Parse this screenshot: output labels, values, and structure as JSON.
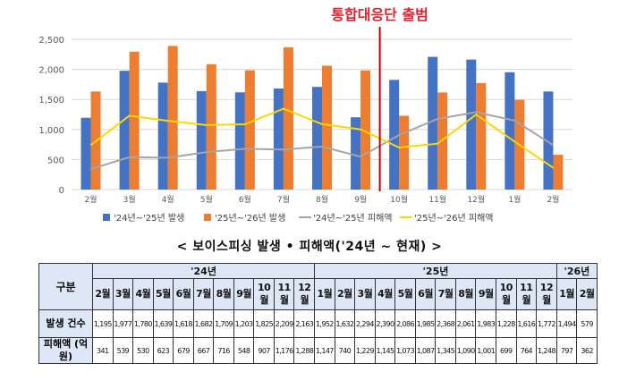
{
  "chart_data": {
    "type": "bar",
    "annotation": "통합대응단 출범",
    "categories": [
      "2월",
      "3월",
      "4월",
      "5월",
      "6월",
      "7월",
      "8월",
      "9월",
      "10월",
      "11월",
      "12월",
      "1월",
      "2월"
    ],
    "yticks": [
      "0",
      "500",
      "1,000",
      "1,500",
      "2,000",
      "2,500"
    ],
    "ylim": [
      0,
      2500
    ],
    "divider_after_index": 7,
    "series": [
      {
        "name": "'24년~'25년 발생",
        "kind": "bar",
        "color": "#4472c4",
        "values": [
          1195,
          1977,
          1780,
          1639,
          1618,
          1682,
          1709,
          1203,
          1825,
          2209,
          2163,
          1952,
          1632
        ]
      },
      {
        "name": "'25년~'26년 발생",
        "kind": "bar",
        "color": "#ed7d31",
        "values": [
          1632,
          2294,
          2390,
          2086,
          1985,
          2368,
          2061,
          1983,
          1228,
          1616,
          1772,
          1494,
          579
        ]
      },
      {
        "name": "'24년~'25년 피해액",
        "kind": "line",
        "color": "#a5a5a5",
        "values": [
          341,
          539,
          530,
          623,
          679,
          667,
          716,
          548,
          907,
          1176,
          1288,
          1147,
          740
        ]
      },
      {
        "name": "'25년~'26년 피해액",
        "kind": "line",
        "color": "#ffd700",
        "values": [
          740,
          1229,
          1145,
          1073,
          1087,
          1345,
          1090,
          1001,
          699,
          764,
          1248,
          797,
          362
        ]
      }
    ]
  },
  "table": {
    "title": "< 보이스피싱 발생 • 피해액('24년 ~ 현재) >",
    "header_label": "구분",
    "years": [
      {
        "label": "'24년",
        "span": 11
      },
      {
        "label": "'25년",
        "span": 12
      },
      {
        "label": "'26년",
        "span": 2
      }
    ],
    "months": [
      "2월",
      "3월",
      "4월",
      "5월",
      "6월",
      "7월",
      "8월",
      "9월",
      "10월",
      "11월",
      "12월",
      "1월",
      "2월",
      "3월",
      "4월",
      "5월",
      "6월",
      "7월",
      "8월",
      "9월",
      "10월",
      "11월",
      "12월",
      "1월",
      "2월"
    ],
    "rows": [
      {
        "label": "발생 건수",
        "values": [
          "1,195",
          "1,977",
          "1,780",
          "1,639",
          "1,618",
          "1,682",
          "1,709",
          "1,203",
          "1,825",
          "2,209",
          "2,163",
          "1,952",
          "1,632",
          "2,294",
          "2,390",
          "2,086",
          "1,985",
          "2,368",
          "2,061",
          "1,983",
          "1,228",
          "1,616",
          "1,772",
          "1,494",
          "579"
        ]
      },
      {
        "label": "피해액 (억 원)",
        "values": [
          "341",
          "539",
          "530",
          "623",
          "679",
          "667",
          "716",
          "548",
          "907",
          "1,176",
          "1,288",
          "1,147",
          "740",
          "1,229",
          "1,145",
          "1,073",
          "1,087",
          "1,345",
          "1,090",
          "1,001",
          "699",
          "764",
          "1,248",
          "797",
          "362"
        ]
      }
    ]
  }
}
